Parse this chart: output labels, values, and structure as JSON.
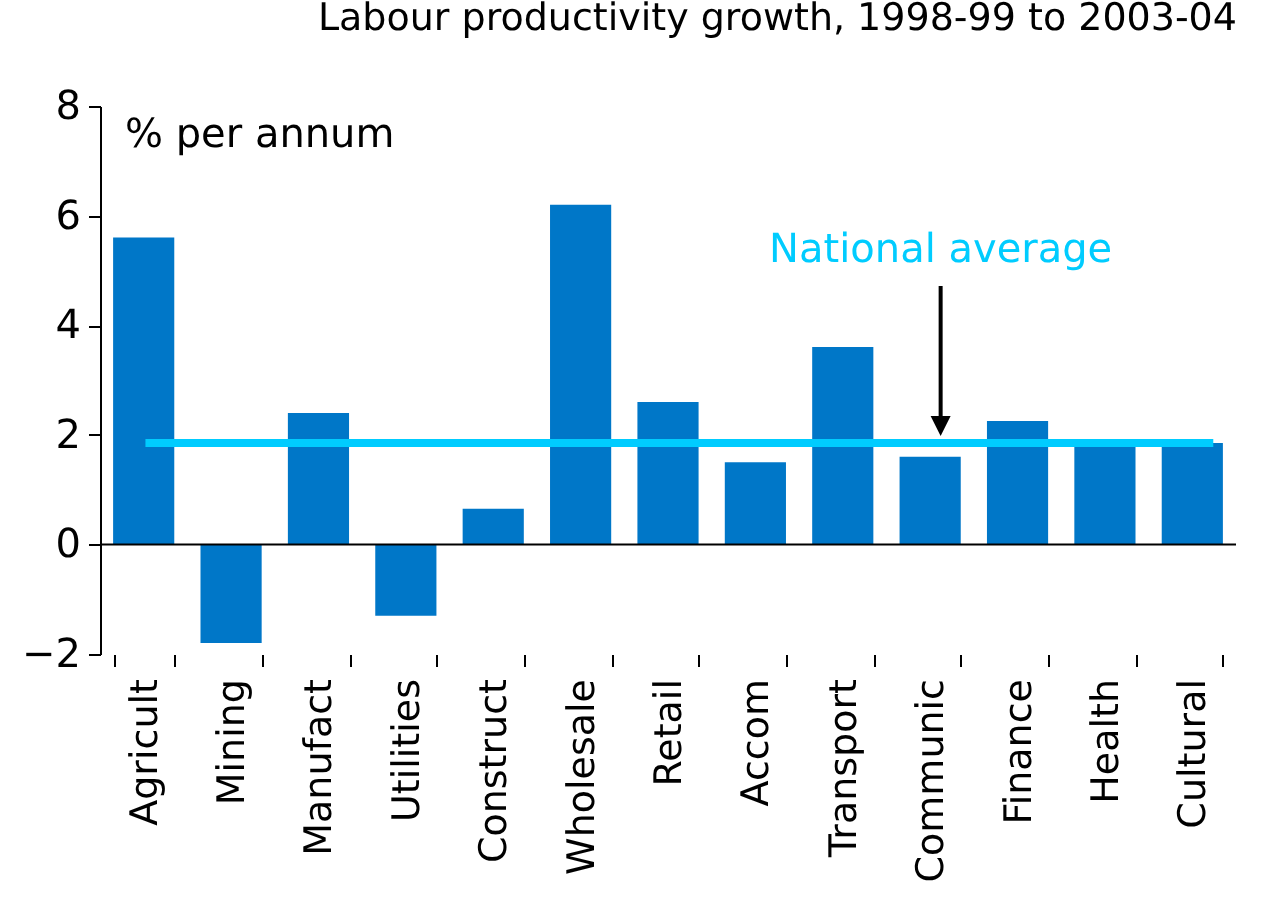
{
  "chart_data": {
    "type": "bar",
    "title": "Labour productivity growth, 1998-99 to 2003-04",
    "ylabel": "% per annum",
    "categories": [
      "Agricult",
      "Mining",
      "Manufact",
      "Utilities",
      "Construct",
      "Wholesale",
      "Retail",
      "Accom",
      "Transport",
      "Communic",
      "Finance",
      "Health",
      "Cultural"
    ],
    "values": [
      5.6,
      -1.8,
      2.4,
      -1.3,
      0.65,
      6.2,
      2.6,
      1.5,
      3.6,
      1.6,
      2.25,
      1.85,
      1.85
    ],
    "color": "#0077c8",
    "ylim": [
      -2,
      8
    ],
    "yticks": [
      -2,
      0,
      2,
      4,
      6,
      8
    ],
    "ref_lines": [
      {
        "axis": "y",
        "value": 1.85,
        "label": "National average",
        "color": "#00ccff"
      }
    ]
  }
}
